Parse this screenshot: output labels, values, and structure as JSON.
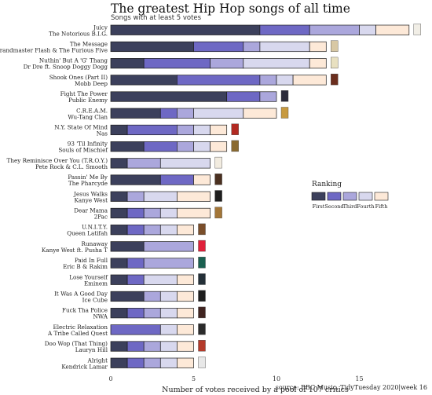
{
  "title": "The greatest Hip Hop songs of all time",
  "subtitle": "Songs with at least 5 votes",
  "caption": "source: BBC Music, TidyTuesday 2020|week 16",
  "chart_data": {
    "type": "bar",
    "orientation": "horizontal",
    "stacked": true,
    "xlabel": "Number of votes received by a pool of 107 critics",
    "xlim": [
      0,
      18.5
    ],
    "xticks": [
      0,
      5,
      10,
      15
    ],
    "legend": {
      "title": "Ranking",
      "placement": "right",
      "entries": [
        "First",
        "Second",
        "Third",
        "Fourth",
        "Fifth"
      ]
    },
    "colors": {
      "First": "#3c405c",
      "Second": "#6e68c4",
      "Third": "#aba7dc",
      "Fourth": "#d8d8ee",
      "Fifth": "#fde9d8"
    },
    "grid": false,
    "songs": [
      {
        "label": "Juicy\nThe Notorious B.I.G.",
        "first": 9,
        "second": 3,
        "third": 3,
        "fourth": 1,
        "fifth": 2
      },
      {
        "label": "The Message\nGrandmaster Flash & The Furious Five",
        "first": 5,
        "second": 3,
        "third": 1,
        "fourth": 3,
        "fifth": 1
      },
      {
        "label": "Nuthin' But A 'G' Thang\nDr Dre ft. Snoop Doggy Dogg",
        "first": 2,
        "second": 4,
        "third": 2,
        "fourth": 4,
        "fifth": 1
      },
      {
        "label": "Shook Ones (Part II)\nMobb Deep",
        "first": 4,
        "second": 5,
        "third": 1,
        "fourth": 1,
        "fifth": 2
      },
      {
        "label": "Fight The Power\nPublic Enemy",
        "first": 7,
        "second": 2,
        "third": 1,
        "fourth": 0,
        "fifth": 0
      },
      {
        "label": "C.R.E.A.M.\nWu-Tang Clan",
        "first": 3,
        "second": 1,
        "third": 1,
        "fourth": 3,
        "fifth": 2
      },
      {
        "label": "N.Y. State Of Mind\nNas",
        "first": 1,
        "second": 3,
        "third": 1,
        "fourth": 1,
        "fifth": 1
      },
      {
        "label": "93 'Til Infinity\nSouls of Mischief",
        "first": 2,
        "second": 2,
        "third": 1,
        "fourth": 1,
        "fifth": 1
      },
      {
        "label": "They Reminisce Over You (T.R.O.Y.)\nPete Rock & C.L. Smooth",
        "first": 1,
        "second": 0,
        "third": 2,
        "fourth": 3,
        "fifth": 0
      },
      {
        "label": "Passin' Me By\nThe Pharcyde",
        "first": 3,
        "second": 2,
        "third": 0,
        "fourth": 0,
        "fifth": 1
      },
      {
        "label": "Jesus Walks\nKanye West",
        "first": 1,
        "second": 0,
        "third": 1,
        "fourth": 2,
        "fifth": 2
      },
      {
        "label": "Dear Mama\n2Pac",
        "first": 1,
        "second": 1,
        "third": 1,
        "fourth": 1,
        "fifth": 2
      },
      {
        "label": "U.N.I.T.Y.\nQueen Latifah",
        "first": 1,
        "second": 1,
        "third": 1,
        "fourth": 1,
        "fifth": 1
      },
      {
        "label": "Runaway\nKanye West ft. Pusha T",
        "first": 2,
        "second": 0,
        "third": 3,
        "fourth": 0,
        "fifth": 0
      },
      {
        "label": "Paid In Full\nEric B & Rakim",
        "first": 1,
        "second": 1,
        "third": 3,
        "fourth": 0,
        "fifth": 0
      },
      {
        "label": "Lose Yourself\nEminem",
        "first": 1,
        "second": 1,
        "third": 0,
        "fourth": 2,
        "fifth": 1
      },
      {
        "label": "It Was A Good Day\nIce Cube",
        "first": 2,
        "second": 0,
        "third": 1,
        "fourth": 1,
        "fifth": 1
      },
      {
        "label": "Fuck Tha Police\nNWA",
        "first": 1,
        "second": 1,
        "third": 1,
        "fourth": 1,
        "fifth": 1
      },
      {
        "label": "Electric Relaxation\nA Tribe Called Quest",
        "first": 0,
        "second": 3,
        "third": 0,
        "fourth": 1,
        "fifth": 1
      },
      {
        "label": "Doo Wop (That Thing)\nLauryn Hill",
        "first": 1,
        "second": 1,
        "third": 1,
        "fourth": 1,
        "fifth": 1
      },
      {
        "label": "Alright\nKendrick Lamar",
        "first": 1,
        "second": 1,
        "third": 1,
        "fourth": 1,
        "fifth": 1
      }
    ]
  }
}
